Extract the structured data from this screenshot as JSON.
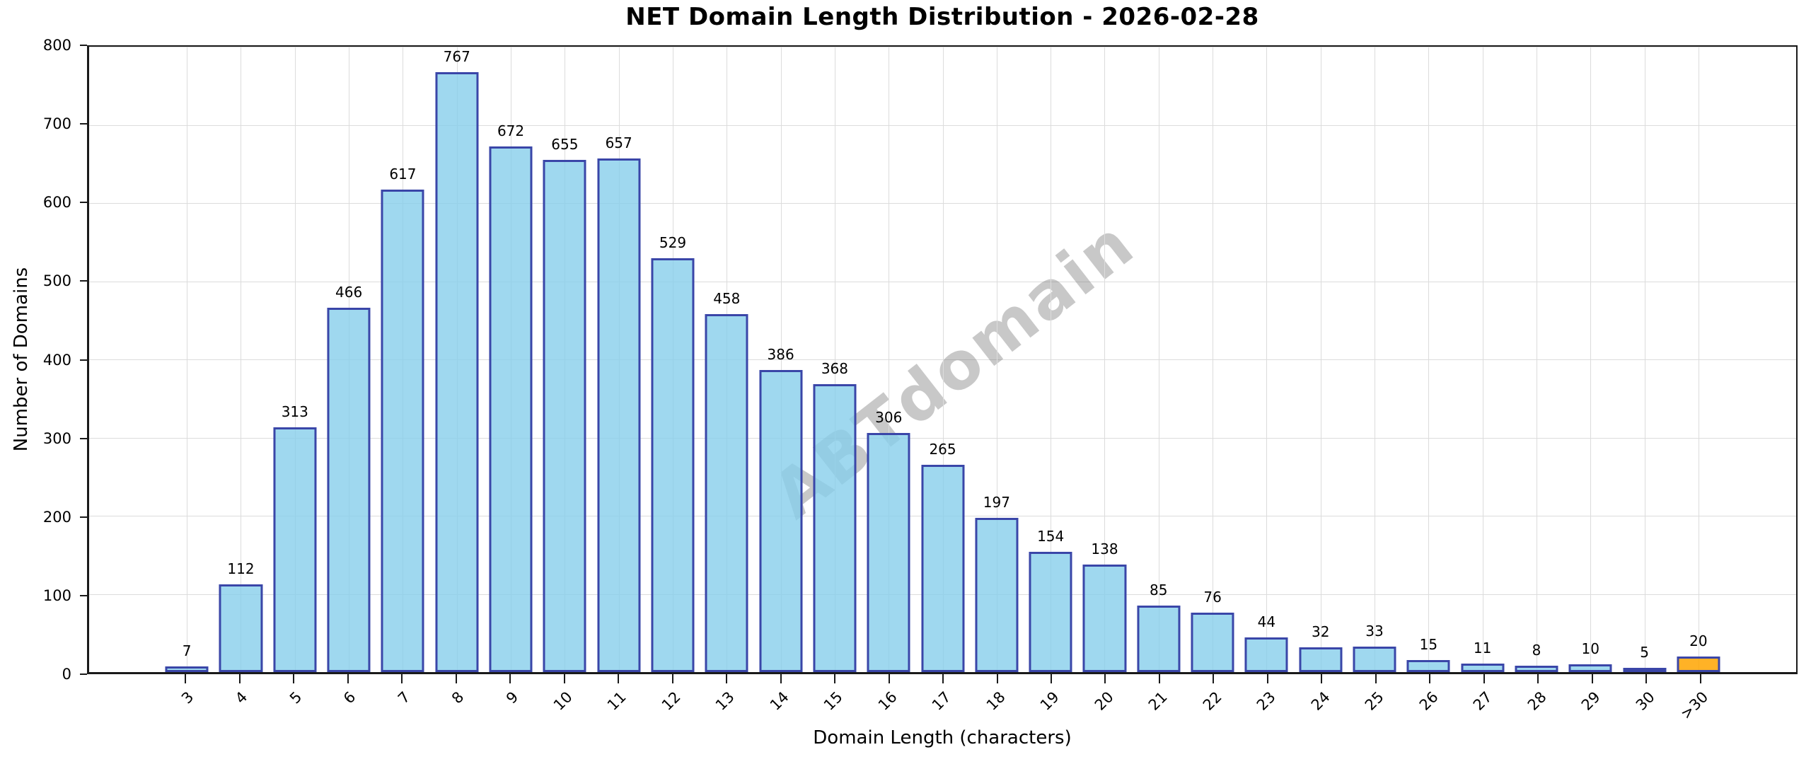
{
  "chart_data": {
    "type": "bar",
    "title": "NET Domain Length Distribution - 2026-02-28",
    "xlabel": "Domain Length (characters)",
    "ylabel": "Number of Domains",
    "categories": [
      "3",
      "4",
      "5",
      "6",
      "7",
      "8",
      "9",
      "10",
      "11",
      "12",
      "13",
      "14",
      "15",
      "16",
      "17",
      "18",
      "19",
      "20",
      "21",
      "22",
      "23",
      "24",
      "25",
      "26",
      "27",
      "28",
      "29",
      "30",
      ">30"
    ],
    "values": [
      7,
      112,
      313,
      466,
      617,
      767,
      672,
      655,
      657,
      529,
      458,
      386,
      368,
      306,
      265,
      197,
      154,
      138,
      85,
      76,
      44,
      32,
      33,
      15,
      11,
      8,
      10,
      5,
      20
    ],
    "ylim": [
      0,
      800
    ],
    "yticks": [
      0,
      100,
      200,
      300,
      400,
      500,
      600,
      700,
      800
    ],
    "grid": true,
    "legend_position": "none",
    "bar_labels_shown": true,
    "watermark": "ABTdomain",
    "colors": {
      "bar_fill": "rgba(135,206,235,0.8)",
      "bar_edge": "#3a46a8",
      "highlight_fill": "rgba(255,165,0,0.85)",
      "highlight_category": ">30",
      "grid": "#dcdcdc",
      "watermark": "rgba(110,110,110,0.38)"
    }
  }
}
